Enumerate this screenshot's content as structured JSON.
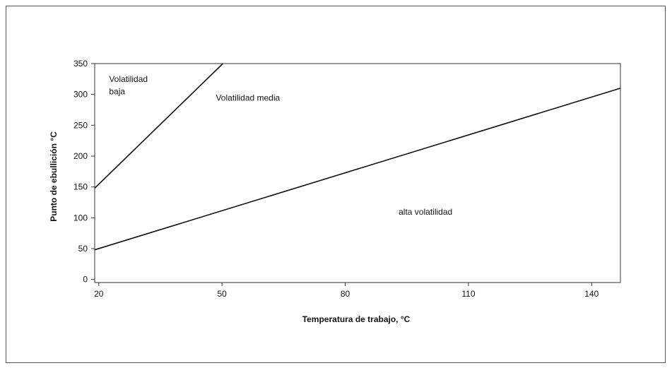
{
  "chart_data": {
    "type": "line",
    "xlabel": "Temperatura de trabajo, °C",
    "ylabel": "Punto de ebullición °C",
    "x_ticks": [
      20,
      50,
      80,
      110,
      140
    ],
    "y_ticks": [
      0,
      50,
      100,
      150,
      200,
      250,
      300,
      350
    ],
    "xlim": [
      19,
      147
    ],
    "ylim": [
      -5,
      350
    ],
    "grid": false,
    "series": [
      {
        "x": [
          19,
          50.2
        ],
        "y": [
          148,
          350
        ]
      },
      {
        "x": [
          19,
          147
        ],
        "y": [
          48,
          310
        ]
      }
    ],
    "annotations": [
      {
        "text": "Volatilidad",
        "x": 22.5,
        "y": 320
      },
      {
        "text": "baja",
        "x": 22.5,
        "y": 300
      },
      {
        "text": "Volatilidad media",
        "x": 48.5,
        "y": 290
      },
      {
        "text": "alta volatilidad",
        "x": 93,
        "y": 105
      }
    ]
  }
}
